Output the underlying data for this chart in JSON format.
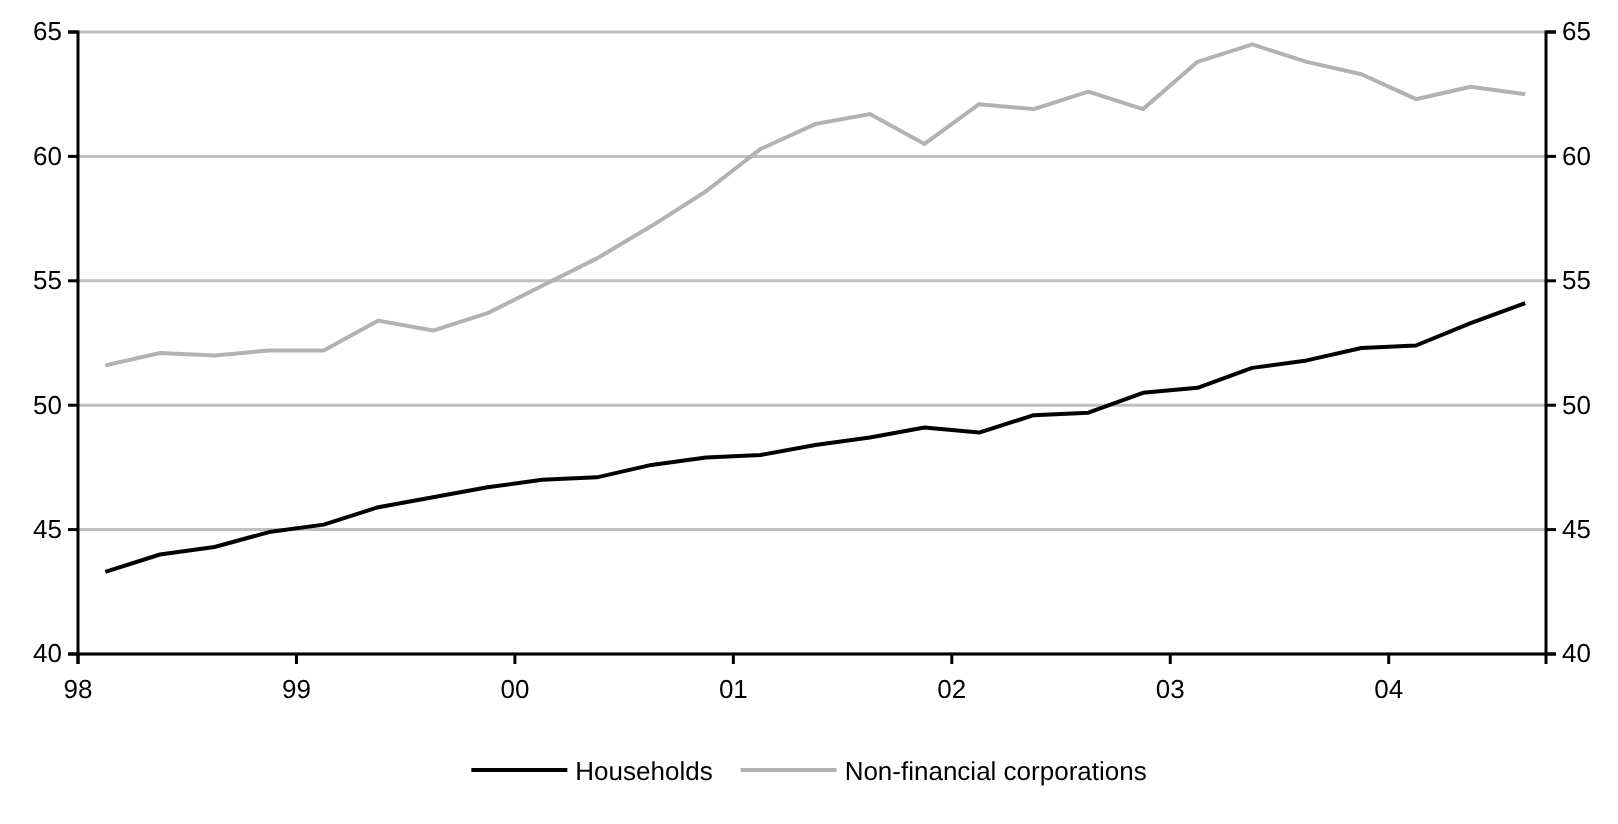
{
  "chart_data": {
    "type": "line",
    "x": [
      1998.125,
      1998.375,
      1998.625,
      1998.875,
      1999.125,
      1999.375,
      1999.625,
      1999.875,
      2000.125,
      2000.375,
      2000.625,
      2000.875,
      2001.125,
      2001.375,
      2001.625,
      2001.875,
      2002.125,
      2002.375,
      2002.625,
      2002.875,
      2003.125,
      2003.375,
      2003.625,
      2003.875,
      2004.125,
      2004.375,
      2004.625
    ],
    "series": [
      {
        "name": "Households",
        "color": "#000000",
        "values": [
          43.3,
          44.0,
          44.3,
          44.9,
          45.2,
          45.9,
          46.3,
          46.7,
          47.0,
          47.1,
          47.6,
          47.9,
          48.0,
          48.4,
          48.7,
          49.1,
          48.9,
          49.6,
          49.7,
          50.5,
          50.7,
          51.5,
          51.8,
          52.3,
          52.4,
          53.3,
          54.1
        ]
      },
      {
        "name": "Non-financial corporations",
        "color": "#b2b2b2",
        "values": [
          51.6,
          52.1,
          52.0,
          52.2,
          52.2,
          53.4,
          53.0,
          53.7,
          54.8,
          55.9,
          57.2,
          58.6,
          60.3,
          61.3,
          61.7,
          60.5,
          62.1,
          61.9,
          62.6,
          61.9,
          63.8,
          64.5,
          63.8,
          63.3,
          62.3,
          62.8,
          62.5
        ]
      }
    ],
    "xlim": [
      1998,
      2004.72
    ],
    "xticks": [
      {
        "value": 1998,
        "label": "98"
      },
      {
        "value": 1999,
        "label": "99"
      },
      {
        "value": 2000,
        "label": "00"
      },
      {
        "value": 2001,
        "label": "01"
      },
      {
        "value": 2002,
        "label": "02"
      },
      {
        "value": 2003,
        "label": "03"
      },
      {
        "value": 2004,
        "label": "04"
      }
    ],
    "ylim": [
      40,
      65
    ],
    "yticks": [
      40,
      45,
      50,
      55,
      60,
      65
    ],
    "y2lim": [
      40,
      65
    ],
    "y2ticks": [
      40,
      45,
      50,
      55,
      60,
      65
    ],
    "grid": "y",
    "legend": "bottom",
    "marker": "none",
    "line_style": "solid"
  }
}
